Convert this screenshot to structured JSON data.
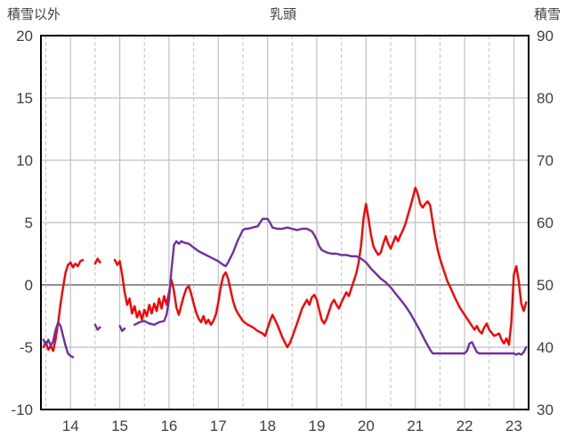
{
  "header": {
    "title": "乳頭",
    "left_axis_label": "積雪以外",
    "right_axis_label": "積雪"
  },
  "style": {
    "grid_color": "#c0c0c0",
    "zero_line_color": "#808080",
    "border_color": "#000000",
    "text_color": "#404040",
    "background": "#ffffff",
    "red_series_color": "#ff0000",
    "purple_series_color": "#7030a0"
  },
  "chart_data": {
    "type": "line",
    "title": "乳頭",
    "legend": "none",
    "grid": true,
    "x_axis": {
      "min": 13.4,
      "max": 23.3,
      "ticks": [
        14,
        15,
        16,
        17,
        18,
        19,
        20,
        21,
        22,
        23
      ],
      "minor_ticks": [
        13.5,
        14.5,
        15.5,
        16.5,
        17.5,
        18.5,
        19.5,
        20.5,
        21.5,
        22.5
      ]
    },
    "left_axis": {
      "label": "積雪以外",
      "min": -10,
      "max": 20,
      "ticks": [
        20,
        15,
        10,
        5,
        0,
        -5,
        -10
      ]
    },
    "right_axis": {
      "label": "積雪",
      "min": 30,
      "max": 90,
      "ticks": [
        90,
        80,
        70,
        60,
        50,
        40,
        30
      ]
    },
    "series": [
      {
        "name": "red-series",
        "axis": "left",
        "color": "#ff0000",
        "points": [
          [
            13.45,
            -5.0
          ],
          [
            13.5,
            -4.6
          ],
          [
            13.55,
            -5.2
          ],
          [
            13.6,
            -4.9
          ],
          [
            13.65,
            -5.3
          ],
          [
            13.7,
            -4.3
          ],
          [
            13.75,
            -3.0
          ],
          [
            13.8,
            -1.5
          ],
          [
            13.85,
            -0.2
          ],
          [
            13.9,
            1.0
          ],
          [
            13.95,
            1.6
          ],
          [
            14.0,
            1.8
          ],
          [
            14.05,
            1.4
          ],
          [
            14.1,
            1.7
          ],
          [
            14.15,
            1.5
          ],
          [
            14.2,
            1.9
          ],
          [
            14.25,
            2.0
          ],
          null,
          [
            14.5,
            1.7
          ],
          [
            14.55,
            2.1
          ],
          [
            14.6,
            1.8
          ],
          null,
          [
            14.9,
            2.0
          ],
          [
            14.95,
            1.6
          ],
          [
            15.0,
            1.9
          ],
          [
            15.05,
            0.8
          ],
          [
            15.1,
            -0.6
          ],
          [
            15.15,
            -1.6
          ],
          [
            15.2,
            -1.1
          ],
          [
            15.25,
            -2.3
          ],
          [
            15.3,
            -1.7
          ],
          [
            15.35,
            -2.6
          ],
          [
            15.4,
            -2.1
          ],
          [
            15.45,
            -2.8
          ],
          [
            15.5,
            -2.0
          ],
          [
            15.55,
            -2.5
          ],
          [
            15.6,
            -1.6
          ],
          [
            15.65,
            -2.3
          ],
          [
            15.7,
            -1.5
          ],
          [
            15.75,
            -2.1
          ],
          [
            15.8,
            -1.1
          ],
          [
            15.85,
            -1.9
          ],
          [
            15.9,
            -0.9
          ],
          [
            15.95,
            -1.6
          ],
          [
            16.0,
            -0.6
          ],
          [
            16.05,
            0.4
          ],
          [
            16.1,
            -0.5
          ],
          [
            16.15,
            -1.8
          ],
          [
            16.2,
            -2.4
          ],
          [
            16.25,
            -1.6
          ],
          [
            16.3,
            -0.9
          ],
          [
            16.35,
            -0.3
          ],
          [
            16.4,
            -0.1
          ],
          [
            16.45,
            -0.7
          ],
          [
            16.5,
            -1.5
          ],
          [
            16.55,
            -2.2
          ],
          [
            16.6,
            -2.7
          ],
          [
            16.65,
            -3.0
          ],
          [
            16.7,
            -2.5
          ],
          [
            16.75,
            -3.1
          ],
          [
            16.8,
            -2.8
          ],
          [
            16.85,
            -3.2
          ],
          [
            16.9,
            -2.9
          ],
          [
            16.95,
            -2.4
          ],
          [
            17.0,
            -1.4
          ],
          [
            17.05,
            -0.2
          ],
          [
            17.1,
            0.7
          ],
          [
            17.15,
            1.0
          ],
          [
            17.2,
            0.5
          ],
          [
            17.25,
            -0.4
          ],
          [
            17.3,
            -1.3
          ],
          [
            17.35,
            -1.9
          ],
          [
            17.4,
            -2.3
          ],
          [
            17.45,
            -2.6
          ],
          [
            17.5,
            -2.9
          ],
          [
            17.6,
            -3.2
          ],
          [
            17.7,
            -3.4
          ],
          [
            17.8,
            -3.7
          ],
          [
            17.9,
            -3.9
          ],
          [
            17.95,
            -4.1
          ],
          [
            18.0,
            -3.5
          ],
          [
            18.05,
            -2.9
          ],
          [
            18.1,
            -2.4
          ],
          [
            18.2,
            -3.2
          ],
          [
            18.3,
            -4.2
          ],
          [
            18.4,
            -5.0
          ],
          [
            18.45,
            -4.7
          ],
          [
            18.5,
            -4.2
          ],
          [
            18.6,
            -3.1
          ],
          [
            18.7,
            -1.9
          ],
          [
            18.8,
            -1.2
          ],
          [
            18.85,
            -1.6
          ],
          [
            18.9,
            -1.0
          ],
          [
            18.95,
            -0.8
          ],
          [
            19.0,
            -1.2
          ],
          [
            19.05,
            -2.0
          ],
          [
            19.1,
            -2.8
          ],
          [
            19.15,
            -3.1
          ],
          [
            19.2,
            -2.7
          ],
          [
            19.25,
            -2.1
          ],
          [
            19.3,
            -1.5
          ],
          [
            19.35,
            -1.2
          ],
          [
            19.4,
            -1.6
          ],
          [
            19.45,
            -1.9
          ],
          [
            19.5,
            -1.4
          ],
          [
            19.55,
            -1.0
          ],
          [
            19.6,
            -0.6
          ],
          [
            19.65,
            -0.9
          ],
          [
            19.7,
            -0.3
          ],
          [
            19.75,
            0.3
          ],
          [
            19.8,
            0.9
          ],
          [
            19.85,
            1.8
          ],
          [
            19.9,
            3.2
          ],
          [
            19.95,
            5.4
          ],
          [
            20.0,
            6.5
          ],
          [
            20.05,
            5.3
          ],
          [
            20.1,
            4.0
          ],
          [
            20.15,
            3.1
          ],
          [
            20.2,
            2.7
          ],
          [
            20.25,
            2.4
          ],
          [
            20.3,
            2.6
          ],
          [
            20.35,
            3.3
          ],
          [
            20.4,
            3.9
          ],
          [
            20.45,
            3.3
          ],
          [
            20.5,
            2.9
          ],
          [
            20.55,
            3.4
          ],
          [
            20.6,
            3.9
          ],
          [
            20.65,
            3.5
          ],
          [
            20.7,
            4.0
          ],
          [
            20.75,
            4.4
          ],
          [
            20.8,
            4.9
          ],
          [
            20.85,
            5.6
          ],
          [
            20.9,
            6.3
          ],
          [
            20.95,
            7.0
          ],
          [
            21.0,
            7.8
          ],
          [
            21.05,
            7.3
          ],
          [
            21.1,
            6.5
          ],
          [
            21.15,
            6.2
          ],
          [
            21.2,
            6.5
          ],
          [
            21.25,
            6.7
          ],
          [
            21.3,
            6.4
          ],
          [
            21.35,
            5.1
          ],
          [
            21.4,
            3.9
          ],
          [
            21.45,
            2.9
          ],
          [
            21.5,
            2.1
          ],
          [
            21.55,
            1.5
          ],
          [
            21.6,
            0.9
          ],
          [
            21.65,
            0.3
          ],
          [
            21.7,
            -0.1
          ],
          [
            21.8,
            -1.0
          ],
          [
            21.9,
            -1.8
          ],
          [
            22.0,
            -2.4
          ],
          [
            22.1,
            -3.0
          ],
          [
            22.2,
            -3.6
          ],
          [
            22.25,
            -3.3
          ],
          [
            22.3,
            -3.7
          ],
          [
            22.35,
            -3.9
          ],
          [
            22.4,
            -3.4
          ],
          [
            22.45,
            -3.1
          ],
          [
            22.5,
            -3.6
          ],
          [
            22.6,
            -4.1
          ],
          [
            22.7,
            -3.9
          ],
          [
            22.75,
            -4.4
          ],
          [
            22.8,
            -4.7
          ],
          [
            22.85,
            -4.3
          ],
          [
            22.9,
            -4.8
          ],
          [
            22.95,
            -3.0
          ],
          [
            23.0,
            0.8
          ],
          [
            23.05,
            1.5
          ],
          [
            23.1,
            0.3
          ],
          [
            23.15,
            -1.5
          ],
          [
            23.2,
            -2.1
          ],
          [
            23.25,
            -1.4
          ]
        ]
      },
      {
        "name": "purple-series",
        "axis": "right",
        "color": "#7030a0",
        "points": [
          [
            13.45,
            41.2
          ],
          [
            13.5,
            40.4
          ],
          [
            13.55,
            41.2
          ],
          [
            13.6,
            40.2
          ],
          [
            13.65,
            41.0
          ],
          [
            13.7,
            42.8
          ],
          [
            13.75,
            44.0
          ],
          [
            13.8,
            43.4
          ],
          [
            13.85,
            41.8
          ],
          [
            13.9,
            40.2
          ],
          [
            13.95,
            39.0
          ],
          [
            14.0,
            38.6
          ],
          [
            14.05,
            38.4
          ],
          null,
          [
            14.5,
            43.6
          ],
          [
            14.55,
            42.8
          ],
          [
            14.6,
            43.2
          ],
          null,
          [
            15.0,
            43.4
          ],
          [
            15.05,
            42.6
          ],
          [
            15.1,
            43.0
          ],
          null,
          [
            15.3,
            43.6
          ],
          [
            15.4,
            44.0
          ],
          [
            15.5,
            44.2
          ],
          [
            15.6,
            43.8
          ],
          [
            15.7,
            43.6
          ],
          [
            15.8,
            44.0
          ],
          [
            15.9,
            44.2
          ],
          [
            15.95,
            45.2
          ],
          [
            16.0,
            47.6
          ],
          [
            16.05,
            52.4
          ],
          [
            16.1,
            56.4
          ],
          [
            16.15,
            57.0
          ],
          [
            16.2,
            56.6
          ],
          [
            16.25,
            57.0
          ],
          [
            16.3,
            56.8
          ],
          [
            16.4,
            56.6
          ],
          [
            16.5,
            56.0
          ],
          [
            16.6,
            55.4
          ],
          [
            16.7,
            55.0
          ],
          [
            16.8,
            54.6
          ],
          [
            16.9,
            54.2
          ],
          [
            17.0,
            53.8
          ],
          [
            17.1,
            53.2
          ],
          [
            17.15,
            53.0
          ],
          [
            17.2,
            53.6
          ],
          [
            17.3,
            55.2
          ],
          [
            17.4,
            57.2
          ],
          [
            17.45,
            58.0
          ],
          [
            17.5,
            58.8
          ],
          [
            17.55,
            59.0
          ],
          [
            17.6,
            59.0
          ],
          [
            17.7,
            59.2
          ],
          [
            17.8,
            59.4
          ],
          [
            17.85,
            60.0
          ],
          [
            17.9,
            60.6
          ],
          [
            18.0,
            60.6
          ],
          [
            18.05,
            60.0
          ],
          [
            18.1,
            59.2
          ],
          [
            18.2,
            59.0
          ],
          [
            18.3,
            59.0
          ],
          [
            18.4,
            59.2
          ],
          [
            18.5,
            59.0
          ],
          [
            18.6,
            58.8
          ],
          [
            18.7,
            59.0
          ],
          [
            18.8,
            59.0
          ],
          [
            18.9,
            58.6
          ],
          [
            18.95,
            58.0
          ],
          [
            19.0,
            57.2
          ],
          [
            19.05,
            56.2
          ],
          [
            19.1,
            55.6
          ],
          [
            19.2,
            55.2
          ],
          [
            19.3,
            55.0
          ],
          [
            19.4,
            55.0
          ],
          [
            19.5,
            54.8
          ],
          [
            19.6,
            54.8
          ],
          [
            19.7,
            54.6
          ],
          [
            19.8,
            54.6
          ],
          [
            19.9,
            54.2
          ],
          [
            20.0,
            53.6
          ],
          [
            20.1,
            52.6
          ],
          [
            20.2,
            51.8
          ],
          [
            20.3,
            51.0
          ],
          [
            20.4,
            50.4
          ],
          [
            20.5,
            49.6
          ],
          [
            20.6,
            48.6
          ],
          [
            20.7,
            47.6
          ],
          [
            20.8,
            46.6
          ],
          [
            20.9,
            45.4
          ],
          [
            21.0,
            44.0
          ],
          [
            21.1,
            42.6
          ],
          [
            21.2,
            41.0
          ],
          [
            21.3,
            39.6
          ],
          [
            21.35,
            39.0
          ],
          [
            21.5,
            39.0
          ],
          [
            21.7,
            39.0
          ],
          [
            21.9,
            39.0
          ],
          [
            22.0,
            39.0
          ],
          [
            22.05,
            39.4
          ],
          [
            22.1,
            40.6
          ],
          [
            22.15,
            40.8
          ],
          [
            22.2,
            40.0
          ],
          [
            22.25,
            39.2
          ],
          [
            22.3,
            39.0
          ],
          [
            22.5,
            39.0
          ],
          [
            22.7,
            39.0
          ],
          [
            22.9,
            39.0
          ],
          [
            23.0,
            39.0
          ],
          [
            23.05,
            38.8
          ],
          [
            23.1,
            39.0
          ],
          [
            23.15,
            38.8
          ],
          [
            23.2,
            39.2
          ],
          [
            23.25,
            40.0
          ]
        ]
      }
    ]
  }
}
